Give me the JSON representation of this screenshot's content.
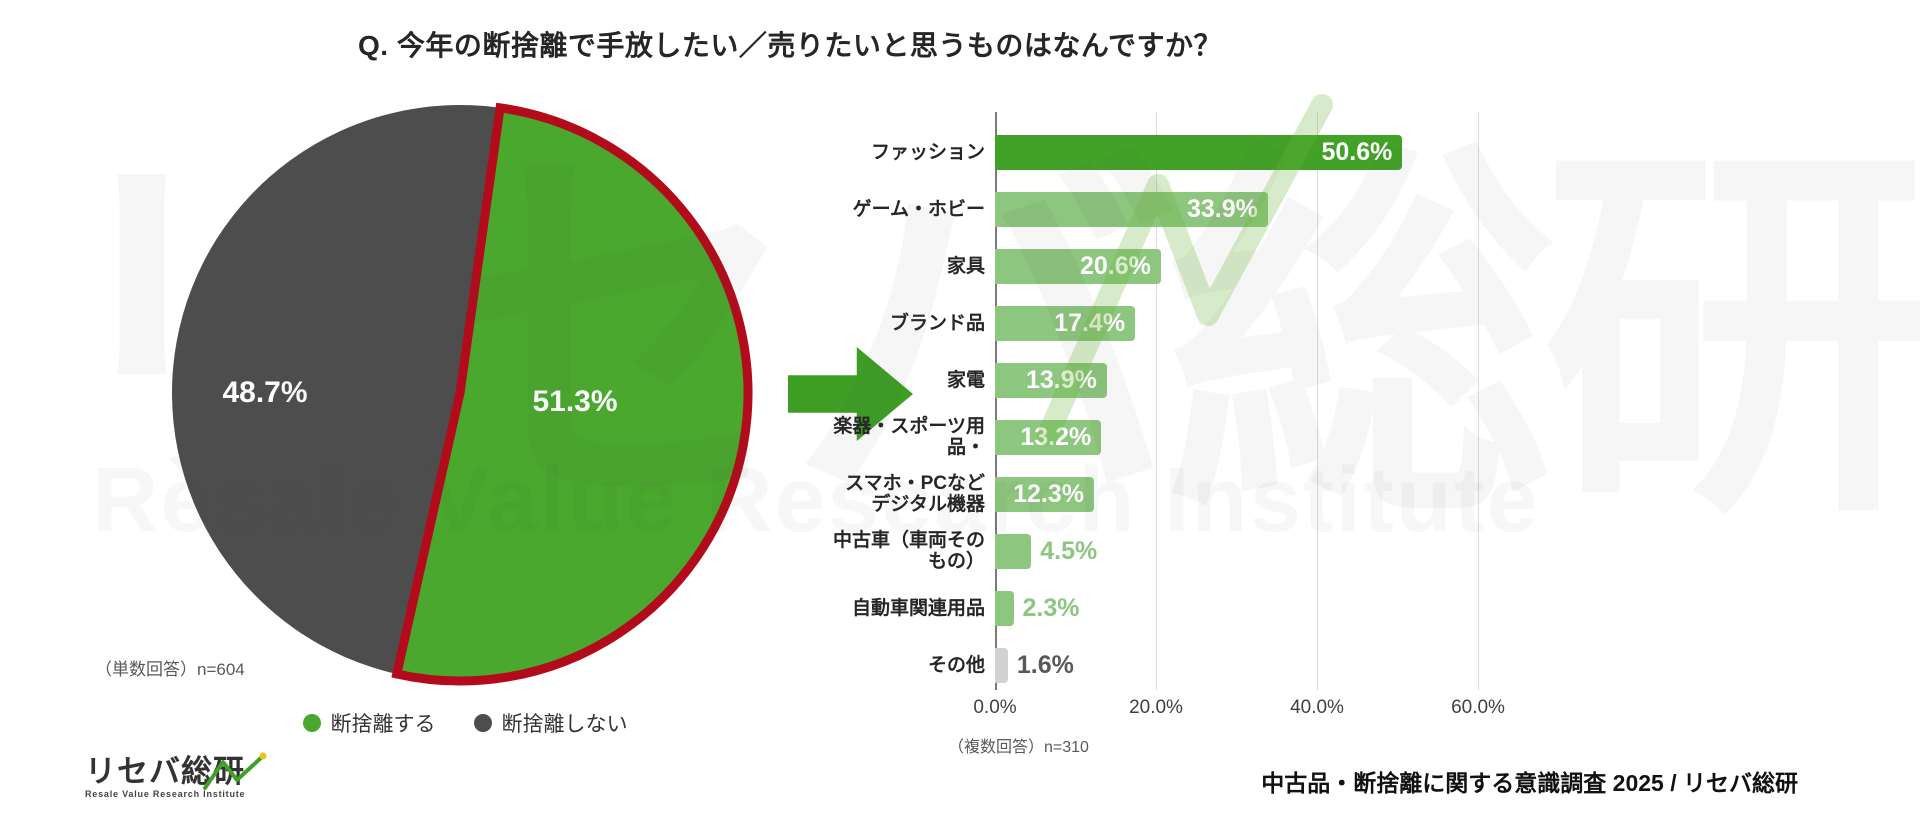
{
  "title": "Q. 今年の断捨離で手放したい／売りたいと思うものはなんですか？",
  "chart_data": [
    {
      "type": "pie",
      "labels": [
        "断捨離する",
        "断捨離しない"
      ],
      "values": [
        51.3,
        48.7
      ],
      "pct_labels": [
        "51.3%",
        "48.7%"
      ],
      "colors": [
        "#4aa82e",
        "#4d4d4d"
      ],
      "highlight": {
        "slice": "断捨離する",
        "border_color": "#b30b1b"
      },
      "note": "（単数回答）n=604",
      "legend_position": "bottom",
      "start_angle_deg": 8
    },
    {
      "type": "bar",
      "orientation": "horizontal",
      "categories": [
        "ファッション",
        "ゲーム・ホビー",
        "家具",
        "ブランド品",
        "家電",
        "楽器・スポーツ用品・",
        "スマホ・PCなどデジタル機器",
        "中古車（車両そのもの）",
        "自動車関連用品",
        "その他"
      ],
      "categories_display": [
        "ファッション",
        "ゲーム・ホビー",
        "家具",
        "ブランド品",
        "家電",
        "楽器・スポーツ用\n品・",
        "スマホ・PCなど\nデジタル機器",
        "中古車（車両その\nもの）",
        "自動車関連用品",
        "その他"
      ],
      "values": [
        50.6,
        33.9,
        20.6,
        17.4,
        13.9,
        13.2,
        12.3,
        4.5,
        2.3,
        1.6
      ],
      "value_labels": [
        "50.6%",
        "33.9%",
        "20.6%",
        "17.4%",
        "13.9%",
        "13.2%",
        "12.3%",
        "4.5%",
        "2.3%",
        "1.6%"
      ],
      "xlim": [
        0,
        60
      ],
      "ticks": [
        "0.0%",
        "20.0%",
        "40.0%",
        "60.0%"
      ],
      "tick_values": [
        0,
        20,
        40,
        60
      ],
      "grid": "vertical",
      "note": "（複数回答）n=310",
      "colors": {
        "emphasis": "#42a227",
        "normal": "#8dc67e",
        "other": "#d2d2d2"
      },
      "outside_label_colors": {
        "normal": "#8dc67e",
        "other": "#595959"
      }
    }
  ],
  "legend": {
    "items": [
      {
        "label": "断捨離する",
        "color": "#4aa82e"
      },
      {
        "label": "断捨離しない",
        "color": "#4d4d4d"
      }
    ]
  },
  "arrow_color": "#3e9e24",
  "watermark": {
    "jp": "リセバ総研",
    "en": "Resale Value Research Institute"
  },
  "footer": {
    "logo_jp": "リセバ総研",
    "logo_en": "Resale Value Research Institute",
    "source": "中古品・断捨離に関する意識調査 2025 / リセバ総研"
  }
}
